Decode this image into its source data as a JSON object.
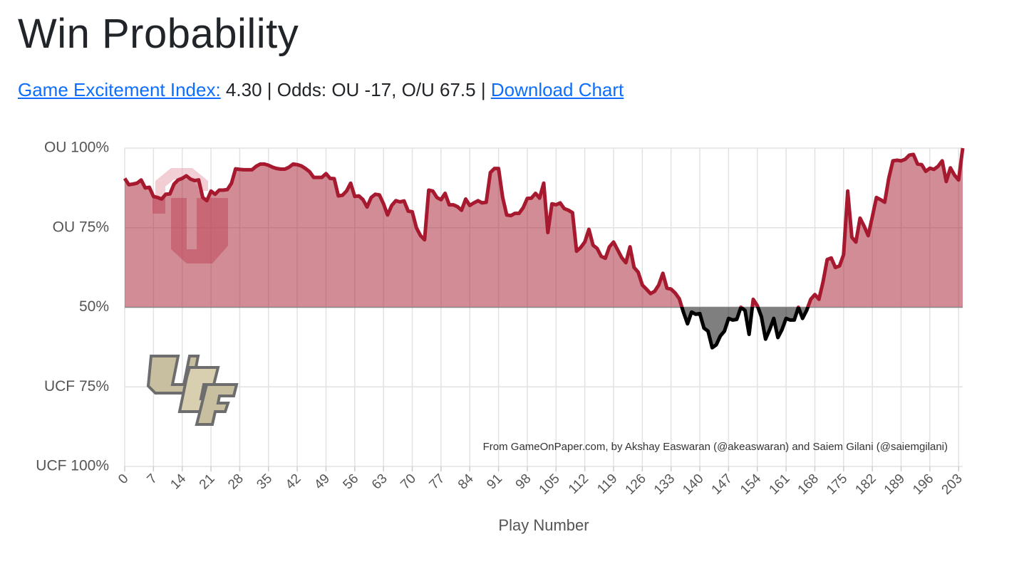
{
  "header": {
    "title": "Win Probability",
    "gei_link": "Game Excitement Index:",
    "stats_text": "4.30 | Odds: OU -17, O/U 67.5 |",
    "download_link": "Download Chart"
  },
  "chart_data": {
    "type": "line",
    "x_label": "Play Number",
    "annotation": "From GameOnPaper.com, by Akshay Easwaran (@akeaswaran) and Saiem Gilani (@saiemgilani)",
    "x": [
      0,
      1,
      2,
      3,
      4,
      5,
      6,
      7,
      8,
      9,
      10,
      11,
      12,
      13,
      14,
      15,
      16,
      17,
      18,
      19,
      20,
      21,
      22,
      23,
      24,
      25,
      26,
      27,
      28,
      29,
      30,
      31,
      32,
      33,
      34,
      35,
      36,
      37,
      38,
      39,
      40,
      41,
      42,
      43,
      44,
      45,
      46,
      47,
      48,
      49,
      50,
      51,
      52,
      53,
      54,
      55,
      56,
      57,
      58,
      59,
      60,
      61,
      62,
      63,
      64,
      65,
      66,
      67,
      68,
      69,
      70,
      71,
      72,
      73,
      74,
      75,
      76,
      77,
      78,
      79,
      80,
      81,
      82,
      83,
      84,
      85,
      86,
      87,
      88,
      89,
      90,
      91,
      92,
      93,
      94,
      95,
      96,
      97,
      98,
      99,
      100,
      101,
      102,
      103,
      104,
      105,
      106,
      107,
      108,
      109,
      110,
      111,
      112,
      113,
      114,
      115,
      116,
      117,
      118,
      119,
      120,
      121,
      122,
      123,
      124,
      125,
      126,
      127,
      128,
      129,
      130,
      131,
      132,
      133,
      134,
      135,
      136,
      137,
      138,
      139,
      140,
      141,
      142,
      143,
      144,
      145,
      146,
      147,
      148,
      149,
      150,
      151,
      152,
      153,
      154,
      155,
      156,
      157,
      158,
      159,
      160,
      161,
      162,
      163,
      164,
      165,
      166,
      167,
      168,
      169,
      170,
      171,
      172,
      173,
      174,
      175,
      176,
      177,
      178,
      179,
      180,
      181,
      182,
      183,
      184,
      185,
      186,
      187,
      188,
      189,
      190,
      191,
      192,
      193,
      194,
      195,
      196,
      197,
      198,
      199,
      200,
      201,
      202,
      203,
      204
    ],
    "series": [
      {
        "color": "#a6192e",
        "below_color": "#000000",
        "values": [
          90.5,
          88.5,
          88.7,
          89,
          90,
          87.5,
          87.7,
          84.8,
          84.5,
          84,
          85.5,
          85.6,
          88.7,
          90,
          90.5,
          91.3,
          90.3,
          89.8,
          90,
          84.5,
          83.5,
          86.5,
          85.5,
          86.8,
          86.8,
          87,
          89,
          93.5,
          93.3,
          93.2,
          93.2,
          93.2,
          94.3,
          95,
          95,
          94.6,
          94,
          93.6,
          93.4,
          93.4,
          94,
          95,
          94.8,
          94.4,
          93.6,
          92.6,
          90.8,
          90.8,
          90.8,
          92,
          90.5,
          90.4,
          85,
          85.2,
          86.5,
          89,
          84.8,
          85,
          83.8,
          81.5,
          84.5,
          85.5,
          85.3,
          82.5,
          79,
          82,
          83.5,
          83.1,
          83.4,
          80.2,
          80,
          75,
          72.5,
          71.2,
          86.8,
          86.5,
          84.5,
          83.8,
          85.8,
          82.2,
          82.2,
          81.6,
          80.5,
          84,
          82,
          82.8,
          83.5,
          82.8,
          83,
          92.3,
          93.6,
          93.6,
          84.5,
          79,
          78.8,
          79.5,
          79.5,
          81.3,
          84.2,
          84.3,
          85.8,
          84.3,
          89,
          73.5,
          82.5,
          82.2,
          82.8,
          81,
          80.5,
          79.7,
          67.6,
          68.8,
          70.5,
          74.5,
          69.5,
          68.5,
          66,
          65.4,
          69,
          70.5,
          68,
          65.6,
          64,
          69,
          62.5,
          61,
          57,
          55.7,
          54.3,
          55,
          57,
          60.7,
          56,
          55.7,
          54.5,
          52.7,
          48.5,
          44.8,
          48.5,
          47.8,
          48,
          43.5,
          42.5,
          37.3,
          38.2,
          41,
          42.5,
          46.5,
          46,
          46.2,
          50,
          49,
          41.5,
          52.5,
          50.5,
          47,
          40,
          43,
          46.5,
          40.5,
          43,
          46.5,
          46,
          46,
          50,
          46.5,
          49,
          52.5,
          54,
          52.5,
          58,
          65,
          65.5,
          62.5,
          63,
          66.5,
          86.5,
          72,
          70.5,
          78,
          75.5,
          72.5,
          78.5,
          84.5,
          83.8,
          83,
          90.5,
          96,
          96.2,
          96,
          96.5,
          97.8,
          98,
          95,
          94.8,
          92.7,
          93.7,
          93.3,
          94.3,
          96,
          89.5,
          93.8,
          91.5,
          90,
          100
        ]
      }
    ],
    "xlim": [
      0,
      204
    ],
    "xticks": [
      0,
      7,
      14,
      21,
      28,
      35,
      42,
      49,
      56,
      63,
      70,
      77,
      84,
      91,
      98,
      105,
      112,
      119,
      126,
      133,
      140,
      147,
      154,
      161,
      168,
      175,
      182,
      189,
      196,
      203
    ],
    "ylim": [
      0,
      100
    ],
    "yticks": [
      {
        "value": 100,
        "label": "OU 100%"
      },
      {
        "value": 75,
        "label": "OU 75%"
      },
      {
        "value": 50,
        "label": "50%"
      },
      {
        "value": 25,
        "label": "UCF 75%"
      },
      {
        "value": 0,
        "label": "UCF 100%"
      }
    ],
    "grid": true
  }
}
